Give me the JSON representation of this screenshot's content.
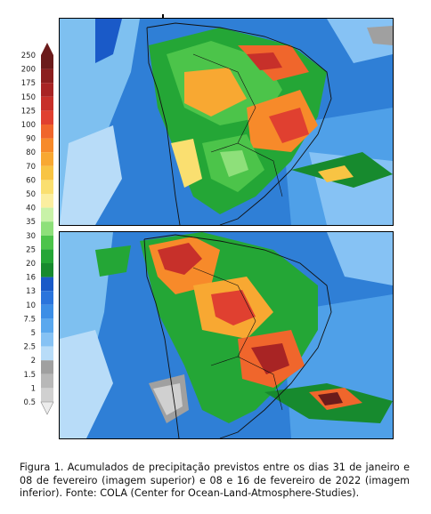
{
  "legend": {
    "labels": [
      "250",
      "200",
      "175",
      "150",
      "125",
      "100",
      "90",
      "80",
      "70",
      "60",
      "50",
      "40",
      "35",
      "30",
      "25",
      "20",
      "16",
      "13",
      "10",
      "7.5",
      "5",
      "2.5",
      "2",
      "1.5",
      "1",
      "0.5"
    ],
    "colors": [
      "#6b1b1b",
      "#8b1e1e",
      "#a82424",
      "#c7302a",
      "#e04030",
      "#f0662c",
      "#f78a2a",
      "#f8a832",
      "#f8c443",
      "#fadf70",
      "#fbeea0",
      "#c8f2a8",
      "#8ee07a",
      "#4cc44a",
      "#24a636",
      "#178a2e",
      "#1a5ac8",
      "#2a74dc",
      "#3c8ee6",
      "#5aa8ee",
      "#86c2f4",
      "#b8dcf8",
      "#a0a0a0",
      "#b8b8b8",
      "#d0d0d0",
      "#ececec"
    ]
  },
  "maps": {
    "top": {
      "name": "previsao-31jan-08fev"
    },
    "bottom": {
      "name": "previsao-08fev-16fev"
    }
  },
  "caption": {
    "text": "Figura 1. Acumulados de precipitação previstos entre os dias 31 de janeiro e 08 de fevereiro (imagem superior) e 08 e 16 de fevereiro de 2022 (imagem inferior). Fonte: COLA (Center for Ocean-Land-Atmosphere-Studies)."
  }
}
